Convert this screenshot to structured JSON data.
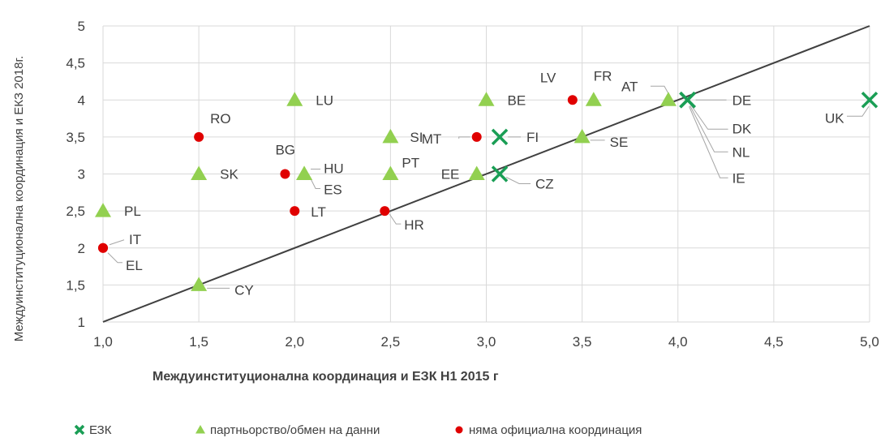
{
  "chart_data": {
    "type": "scatter",
    "xlabel": "Междуинституционална  координация  и ЕЗК Н1 2015 г",
    "ylabel": "Междуинституционална координация и ЕКЗ 2018г.",
    "xlim": [
      1.0,
      5.0
    ],
    "ylim": [
      1,
      5
    ],
    "x_ticks": [
      "1,0",
      "1,5",
      "2,0",
      "2,5",
      "3,0",
      "3,5",
      "4,0",
      "4,5",
      "5,0"
    ],
    "y_ticks": [
      "1",
      "1,5",
      "2",
      "2,5",
      "3",
      "3,5",
      "4",
      "4,5",
      "5"
    ],
    "grid": true,
    "legend_position": "bottom",
    "reference_line": {
      "from": [
        1,
        1
      ],
      "to": [
        5,
        5
      ]
    },
    "series": [
      {
        "name": "ЕЗК",
        "marker": "x",
        "color": "#1a9e55",
        "points": [
          {
            "label": "UK",
            "x": 5.0,
            "y": 4.0
          },
          {
            "label": "DE",
            "x": 4.05,
            "y": 4.0
          },
          {
            "label": "DK",
            "x": 4.05,
            "y": 4.0
          },
          {
            "label": "NL",
            "x": 4.05,
            "y": 4.0
          },
          {
            "label": "IE",
            "x": 4.05,
            "y": 4.0
          },
          {
            "label": "FI",
            "x": 3.07,
            "y": 3.5
          },
          {
            "label": "CZ",
            "x": 3.07,
            "y": 3.0
          }
        ]
      },
      {
        "name": "партньорство/обмен на данни",
        "marker": "triangle",
        "color": "#92d050",
        "points": [
          {
            "label": "PL",
            "x": 1.0,
            "y": 2.5
          },
          {
            "label": "SK",
            "x": 1.5,
            "y": 3.0
          },
          {
            "label": "CY",
            "x": 1.5,
            "y": 1.5
          },
          {
            "label": "LU",
            "x": 2.0,
            "y": 4.0
          },
          {
            "label": "HU",
            "x": 2.05,
            "y": 3.0
          },
          {
            "label": "ES",
            "x": 2.05,
            "y": 3.0
          },
          {
            "label": "SI",
            "x": 2.5,
            "y": 3.5
          },
          {
            "label": "PT",
            "x": 2.5,
            "y": 3.0
          },
          {
            "label": "EE",
            "x": 2.95,
            "y": 3.0
          },
          {
            "label": "BE",
            "x": 3.0,
            "y": 4.0
          },
          {
            "label": "FR",
            "x": 3.56,
            "y": 4.0
          },
          {
            "label": "SE",
            "x": 3.5,
            "y": 3.5
          },
          {
            "label": "AT",
            "x": 3.95,
            "y": 4.0
          }
        ]
      },
      {
        "name": "няма официална координация",
        "marker": "circle",
        "color": "#e00000",
        "points": [
          {
            "label": "RO",
            "x": 1.5,
            "y": 3.5
          },
          {
            "label": "BG",
            "x": 1.95,
            "y": 3.0
          },
          {
            "label": "LT",
            "x": 2.0,
            "y": 2.5
          },
          {
            "label": "HR",
            "x": 2.47,
            "y": 2.5
          },
          {
            "label": "IT",
            "x": 1.0,
            "y": 2.0
          },
          {
            "label": "EL",
            "x": 1.0,
            "y": 2.0
          },
          {
            "label": "MT",
            "x": 2.95,
            "y": 3.5
          },
          {
            "label": "LV",
            "x": 3.45,
            "y": 4.0
          }
        ]
      }
    ]
  }
}
